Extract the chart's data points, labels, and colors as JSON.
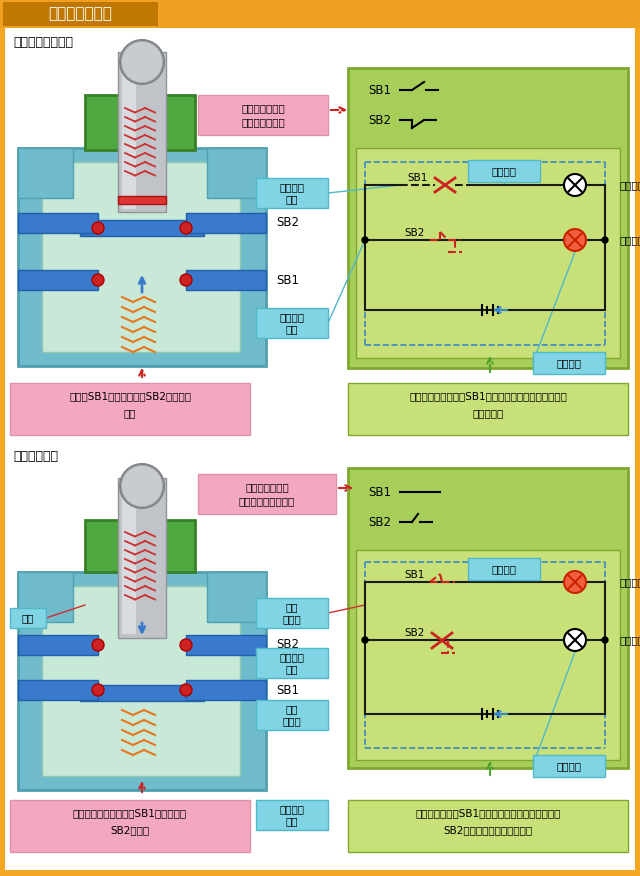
{
  "title": "开关的功能特点",
  "page_bg": "#F5A623",
  "white_bg": "#FFFFFF",
  "title_bar_bg": "#E8890A",
  "section1_title": "常态（待机状态）",
  "section2_title": "按下按钮状态",
  "pink_box1_line1": "开关的电路状态",
  "pink_box1_line2": "（常态状态）。",
  "pink_box2_line1": "开关的电路状态",
  "pink_box2_line2": "（按下按钮状态）。",
  "cyan_kaiduandian": "常开触点\n断开",
  "cyan_bihedian": "常闭触点\n闭合",
  "cyan_dengpao_mie1": "灯泡熄灭",
  "cyan_dengpao_liang1": "灯泡点亮",
  "cyan_chanbi_jing": "常闭\n静触头",
  "cyan_kaifeidian": "常开触点\n闭合",
  "cyan_changkai_jing": "常开\n静触头",
  "cyan_chanbi_duan": "常闭触点\n断开",
  "cyan_dengpao_liang2": "灯泡点亮",
  "cyan_dengpao_mie2": "灯泡熄灭",
  "label_sb1": "SB1",
  "label_sb2": "SB2",
  "label_lian": "连杆",
  "note1": "常态，SB1呈断开状态，SB2呈接通状\n态。",
  "note2": "按下开关按钮时，触点SB1接通，触点\nSB2断开。",
  "note3_line1": "常态（待机状态），SB1断路，启动指示灯不亮，停止",
  "note3_line2": "指示灯亮。",
  "note4_line1": "按下按钮，触点SB1接通，启动指示灯点亮。触点",
  "note4_line2": "SB2断开，停止指示灯熄灭。",
  "label_start": "启动指示灯",
  "label_stop": "停止指示灯",
  "green_bg": "#A8CE5A",
  "light_green_bg": "#C8E078",
  "pink_bg": "#F4A8C0",
  "cyan_bg": "#80D4E4",
  "blue_bar": "#3A7CC8",
  "teal_outer": "#78C4CC",
  "teal_inner": "#C0E8E0",
  "green_cap": "#50A050",
  "shaft_color": "#B0B8C0",
  "spring_red": "#CC3333",
  "spring_orange": "#E87820",
  "contact_red": "#CC2222",
  "wire_black": "#1A1A1A",
  "wire_blue": "#3A88CC",
  "wire_red_dash": "#CC2222",
  "orange_border": "#F5A623"
}
